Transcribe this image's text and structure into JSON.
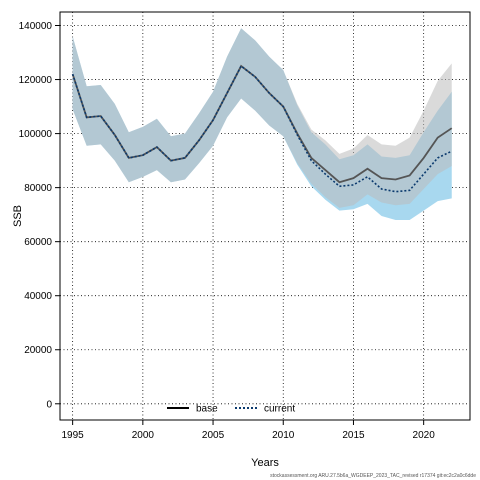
{
  "chart_data": {
    "type": "line",
    "xlabel": "Years",
    "ylabel": "SSB",
    "xlim": [
      1994.1,
      2023.3
    ],
    "ylim": [
      -6000,
      145000
    ],
    "x_ticks": [
      1995,
      2000,
      2005,
      2010,
      2015,
      2020
    ],
    "y_ticks": [
      0,
      20000,
      40000,
      60000,
      80000,
      100000,
      120000,
      140000
    ],
    "grid": true,
    "legend_position": "bottom-center",
    "footnote": "stockassessment.org ARU.27.5b6a_WGDEEP_2023_TAC_revised r17374 git:ec2c2a0c6dde",
    "x": [
      1995,
      1996,
      1997,
      1998,
      1999,
      2000,
      2001,
      2002,
      2003,
      2004,
      2005,
      2006,
      2007,
      2008,
      2009,
      2010,
      2011,
      2012,
      2013,
      2014,
      2015,
      2016,
      2017,
      2018,
      2019,
      2020,
      2021,
      2022
    ],
    "series": [
      {
        "name": "base",
        "line_style": "solid",
        "line_color": "#555555",
        "band_color": "#bcbcbc",
        "values": [
          122000,
          106000,
          106500,
          99500,
          91000,
          92000,
          95000,
          90000,
          91000,
          97500,
          105000,
          115000,
          125000,
          121000,
          115000,
          110000,
          100000,
          91000,
          86500,
          82000,
          83500,
          87000,
          83500,
          83000,
          84500,
          91000,
          98500,
          102000
        ],
        "lower": [
          109000,
          95500,
          96000,
          90000,
          82000,
          84000,
          86500,
          82000,
          83000,
          89000,
          95500,
          106000,
          113000,
          108500,
          103000,
          99000,
          89000,
          81500,
          76500,
          72500,
          73500,
          77500,
          74500,
          73500,
          74000,
          79500,
          85000,
          88000
        ],
        "upper": [
          136000,
          117500,
          118000,
          111000,
          100500,
          102500,
          105500,
          99000,
          100000,
          107500,
          115500,
          128500,
          139000,
          134500,
          128500,
          123500,
          111000,
          101500,
          97500,
          92500,
          94500,
          99500,
          96000,
          95500,
          98500,
          108500,
          119500,
          126000
        ]
      },
      {
        "name": "current",
        "line_style": "dotted",
        "line_color": "#0b3a6e",
        "band_color": "#a8d8ef",
        "values": [
          122000,
          106000,
          106500,
          99500,
          91000,
          92000,
          95000,
          90000,
          91000,
          97500,
          105000,
          115000,
          125000,
          121000,
          115000,
          110000,
          99500,
          90000,
          85000,
          80500,
          81000,
          84000,
          79500,
          78500,
          79000,
          85000,
          91000,
          93500
        ],
        "lower": [
          109000,
          95500,
          96000,
          90000,
          82000,
          84000,
          86500,
          82000,
          83000,
          89000,
          95500,
          106000,
          113000,
          108500,
          103000,
          99000,
          88500,
          80500,
          75500,
          71500,
          72000,
          74000,
          69500,
          68000,
          68000,
          71500,
          75000,
          76000
        ],
        "upper": [
          136000,
          117500,
          118000,
          111000,
          100500,
          102500,
          105500,
          99000,
          100000,
          107500,
          115500,
          128500,
          139000,
          134500,
          128500,
          123500,
          110500,
          100500,
          96000,
          90500,
          92000,
          96000,
          91500,
          91000,
          92000,
          100500,
          108500,
          115500
        ]
      }
    ]
  }
}
